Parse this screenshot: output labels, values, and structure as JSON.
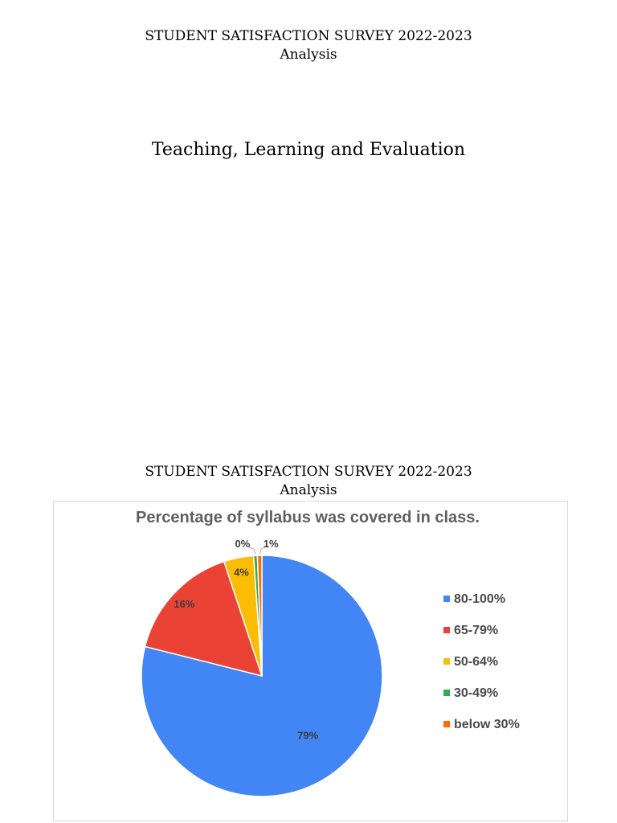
{
  "header": {
    "title": "STUDENT SATISFACTION SURVEY 2022-2023",
    "subtitle": "Analysis"
  },
  "section": {
    "title": "Teaching, Learning and Evaluation"
  },
  "second_header": {
    "title": "STUDENT SATISFACTION SURVEY 2022-2023",
    "subtitle": "Analysis"
  },
  "chart_data": {
    "type": "pie",
    "title": "Percentage of  syllabus was covered in class.",
    "legend_position": "right",
    "slices": [
      {
        "label": "80-100%",
        "value": 79,
        "display": "79%",
        "color": "#4285f4"
      },
      {
        "label": "65-79%",
        "value": 16,
        "display": "16%",
        "color": "#ea4335"
      },
      {
        "label": "50-64%",
        "value": 4,
        "display": "4%",
        "color": "#fbbc04"
      },
      {
        "label": "30-49%",
        "value": 0.5,
        "display": "0%",
        "color": "#34a853"
      },
      {
        "label": "below 30%",
        "value": 0.6,
        "display": "1%",
        "color": "#ff6d01"
      }
    ]
  }
}
